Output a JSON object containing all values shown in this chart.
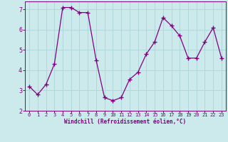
{
  "x": [
    0,
    1,
    2,
    3,
    4,
    5,
    6,
    7,
    8,
    9,
    10,
    11,
    12,
    13,
    14,
    15,
    16,
    17,
    18,
    19,
    20,
    21,
    22,
    23
  ],
  "y": [
    3.2,
    2.8,
    3.3,
    4.3,
    7.1,
    7.1,
    6.85,
    6.85,
    4.5,
    2.65,
    2.5,
    2.65,
    3.55,
    3.9,
    4.8,
    5.4,
    6.6,
    6.2,
    5.7,
    4.6,
    4.6,
    5.4,
    6.1,
    4.6
  ],
  "line_color": "#800080",
  "marker": "+",
  "marker_size": 4,
  "bg_color": "#cce9ec",
  "grid_color": "#b0d8dc",
  "xlabel": "Windchill (Refroidissement éolien,°C)",
  "xlabel_color": "#800080",
  "tick_color": "#800080",
  "axis_color": "#800080",
  "ylim": [
    2,
    7.4
  ],
  "xlim": [
    -0.5,
    23.5
  ],
  "yticks": [
    2,
    3,
    4,
    5,
    6,
    7
  ],
  "xticks": [
    0,
    1,
    2,
    3,
    4,
    5,
    6,
    7,
    8,
    9,
    10,
    11,
    12,
    13,
    14,
    15,
    16,
    17,
    18,
    19,
    20,
    21,
    22,
    23
  ]
}
